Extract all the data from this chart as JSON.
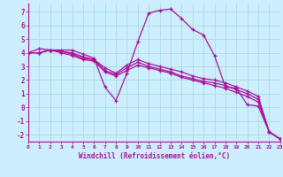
{
  "xlabel": "Windchill (Refroidissement éolien,°C)",
  "background_color": "#cceeff",
  "grid_color": "#aadddd",
  "line_color": "#aa1199",
  "axis_color": "#aa1199",
  "series": [
    [
      4.0,
      4.3,
      4.2,
      4.2,
      4.2,
      3.9,
      3.6,
      1.5,
      0.5,
      2.5,
      4.8,
      6.9,
      7.1,
      7.2,
      6.5,
      5.7,
      5.3,
      3.8,
      1.5,
      1.4,
      0.2,
      0.1,
      -1.8,
      -2.3
    ],
    [
      4.0,
      4.0,
      4.2,
      4.1,
      4.0,
      3.7,
      3.5,
      2.9,
      2.5,
      3.1,
      3.5,
      3.2,
      3.0,
      2.8,
      2.6,
      2.3,
      2.1,
      2.0,
      1.8,
      1.5,
      1.2,
      0.8,
      -1.8,
      -2.3
    ],
    [
      4.0,
      4.0,
      4.2,
      4.1,
      3.9,
      3.6,
      3.5,
      2.7,
      2.4,
      2.9,
      3.3,
      3.0,
      2.8,
      2.6,
      2.3,
      2.1,
      1.9,
      1.8,
      1.6,
      1.3,
      1.0,
      0.6,
      -1.8,
      -2.3
    ],
    [
      4.0,
      4.0,
      4.2,
      4.0,
      3.8,
      3.5,
      3.4,
      2.6,
      2.3,
      2.7,
      3.1,
      2.9,
      2.7,
      2.5,
      2.2,
      2.0,
      1.8,
      1.6,
      1.4,
      1.1,
      0.8,
      0.4,
      -1.8,
      -2.3
    ]
  ],
  "xlim": [
    0,
    23
  ],
  "ylim": [
    -2.5,
    7.6
  ],
  "yticks": [
    -2,
    -1,
    0,
    1,
    2,
    3,
    4,
    5,
    6,
    7
  ],
  "xticks": [
    0,
    1,
    2,
    3,
    4,
    5,
    6,
    7,
    8,
    9,
    10,
    11,
    12,
    13,
    14,
    15,
    16,
    17,
    18,
    19,
    20,
    21,
    22,
    23
  ],
  "marker": "+"
}
